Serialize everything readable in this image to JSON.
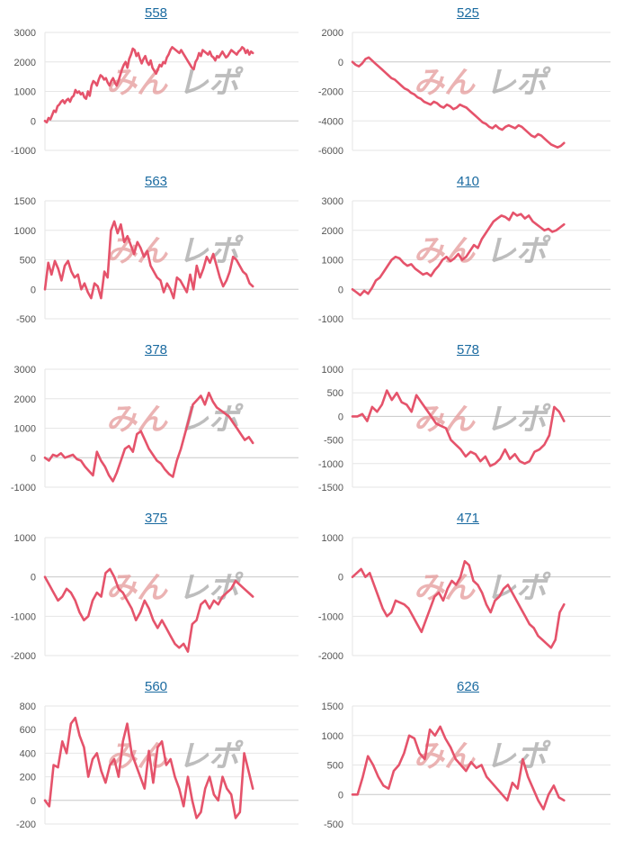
{
  "theme": {
    "line_color": "#e5536b",
    "grid_color": "#e6e6e6",
    "axis_color": "#c8c8c8",
    "title_color": "#1a6aa0",
    "tick_color": "#555555",
    "watermark_red": "#e59a9a",
    "watermark_gray": "#a8a8a8"
  },
  "watermark": {
    "text_red": "みん",
    "text_gray": "レポ"
  },
  "chart_data": [
    {
      "type": "line",
      "title": "558",
      "ticks": [
        3000,
        2000,
        1000,
        0,
        -1000
      ],
      "ylim": [
        -1000,
        3000
      ],
      "values": [
        0,
        -50,
        100,
        50,
        200,
        350,
        300,
        500,
        550,
        650,
        700,
        600,
        700,
        750,
        650,
        800,
        850,
        1050,
        950,
        1000,
        900,
        950,
        800,
        750,
        1000,
        850,
        1200,
        1350,
        1300,
        1200,
        1400,
        1550,
        1500,
        1400,
        1450,
        1300,
        1200,
        1350,
        1450,
        1300,
        1200,
        1350,
        1550,
        1750,
        1900,
        2000,
        1800,
        2100,
        2250,
        2450,
        2400,
        2200,
        2300,
        2100,
        1950,
        2100,
        2200,
        2000,
        1900,
        2050,
        1800,
        1700,
        1600,
        1750,
        1900,
        1850,
        2000,
        1950,
        2150,
        2250,
        2400,
        2500,
        2450,
        2400,
        2350,
        2300,
        2400,
        2300,
        2200,
        2100,
        2000,
        1900,
        1800,
        1750,
        2000,
        2100,
        2300,
        2200,
        2400,
        2350,
        2300,
        2250,
        2350,
        2200,
        2150,
        2050,
        2200,
        2150,
        2250,
        2350,
        2250,
        2150,
        2200,
        2300,
        2400,
        2350,
        2300,
        2250,
        2350,
        2400,
        2500,
        2450,
        2300,
        2400,
        2250,
        2350,
        2300
      ]
    },
    {
      "type": "line",
      "title": "525",
      "ticks": [
        2000,
        0,
        -2000,
        -4000,
        -6000
      ],
      "ylim": [
        -6000,
        2000
      ],
      "values": [
        0,
        -200,
        -300,
        -100,
        200,
        300,
        100,
        -100,
        -300,
        -500,
        -700,
        -900,
        -1100,
        -1200,
        -1400,
        -1600,
        -1800,
        -1900,
        -2100,
        -2200,
        -2400,
        -2500,
        -2700,
        -2800,
        -2900,
        -2700,
        -2800,
        -3000,
        -3100,
        -2900,
        -3000,
        -3200,
        -3100,
        -2900,
        -3000,
        -3100,
        -3300,
        -3500,
        -3700,
        -3900,
        -4100,
        -4200,
        -4400,
        -4500,
        -4300,
        -4500,
        -4600,
        -4400,
        -4300,
        -4400,
        -4500,
        -4300,
        -4400,
        -4600,
        -4800,
        -5000,
        -5100,
        -4900,
        -5000,
        -5200,
        -5400,
        -5600,
        -5700,
        -5800,
        -5700,
        -5500
      ]
    },
    {
      "type": "line",
      "title": "563",
      "ticks": [
        1500,
        1000,
        500,
        0,
        -500
      ],
      "ylim": [
        -500,
        1500
      ],
      "values": [
        0,
        450,
        250,
        480,
        350,
        150,
        400,
        480,
        300,
        200,
        250,
        0,
        100,
        -50,
        -150,
        100,
        50,
        -150,
        300,
        200,
        1000,
        1150,
        950,
        1100,
        800,
        900,
        750,
        600,
        800,
        700,
        550,
        650,
        400,
        300,
        200,
        150,
        -50,
        100,
        0,
        -150,
        200,
        150,
        50,
        -50,
        250,
        0,
        400,
        200,
        350,
        550,
        450,
        600,
        400,
        200,
        50,
        150,
        300,
        550,
        500,
        400,
        300,
        250,
        100,
        50
      ]
    },
    {
      "type": "line",
      "title": "410",
      "ticks": [
        3000,
        2000,
        1000,
        0,
        -1000
      ],
      "ylim": [
        -1000,
        3000
      ],
      "values": [
        0,
        -100,
        -200,
        -50,
        -150,
        50,
        300,
        400,
        600,
        800,
        1000,
        1100,
        1050,
        900,
        800,
        850,
        700,
        600,
        500,
        550,
        450,
        650,
        800,
        1000,
        1100,
        950,
        1050,
        1200,
        1000,
        1100,
        1300,
        1500,
        1400,
        1700,
        1900,
        2100,
        2300,
        2400,
        2500,
        2450,
        2350,
        2600,
        2500,
        2550,
        2400,
        2500,
        2300,
        2200,
        2100,
        2000,
        2050,
        1950,
        2000,
        2100,
        2200
      ]
    },
    {
      "type": "line",
      "title": "378",
      "ticks": [
        3000,
        2000,
        1000,
        0,
        -1000
      ],
      "ylim": [
        -1000,
        3000
      ],
      "values": [
        0,
        -100,
        100,
        50,
        150,
        0,
        50,
        100,
        -50,
        -100,
        -300,
        -450,
        -600,
        200,
        -100,
        -300,
        -600,
        -800,
        -500,
        -100,
        300,
        400,
        200,
        800,
        900,
        600,
        300,
        100,
        -100,
        -200,
        -400,
        -550,
        -650,
        -100,
        300,
        800,
        1300,
        1800,
        1950,
        2100,
        1800,
        2200,
        1900,
        1700,
        1600,
        1500,
        1400,
        1200,
        1000,
        800,
        600,
        700,
        500
      ]
    },
    {
      "type": "line",
      "title": "578",
      "ticks": [
        1000,
        500,
        0,
        -500,
        -1000,
        -1500
      ],
      "ylim": [
        -1500,
        1000
      ],
      "values": [
        0,
        0,
        50,
        -100,
        200,
        100,
        250,
        550,
        350,
        500,
        300,
        250,
        100,
        450,
        300,
        150,
        0,
        -150,
        -200,
        -250,
        -500,
        -600,
        -700,
        -850,
        -750,
        -800,
        -950,
        -850,
        -1050,
        -1000,
        -900,
        -700,
        -900,
        -800,
        -950,
        -1000,
        -950,
        -750,
        -700,
        -600,
        -400,
        200,
        100,
        -100
      ]
    },
    {
      "type": "line",
      "title": "375",
      "ticks": [
        1000,
        0,
        -1000,
        -2000
      ],
      "ylim": [
        -2000,
        1000
      ],
      "values": [
        0,
        -200,
        -400,
        -600,
        -500,
        -300,
        -400,
        -600,
        -900,
        -1100,
        -1000,
        -600,
        -400,
        -500,
        100,
        200,
        0,
        -300,
        -400,
        -600,
        -800,
        -1100,
        -900,
        -600,
        -800,
        -1100,
        -1300,
        -1100,
        -1300,
        -1500,
        -1700,
        -1800,
        -1700,
        -1900,
        -1200,
        -1100,
        -700,
        -600,
        -800,
        -600,
        -700,
        -500,
        -400,
        -300,
        -100,
        -200,
        -300,
        -400,
        -500
      ]
    },
    {
      "type": "line",
      "title": "471",
      "ticks": [
        1000,
        0,
        -1000,
        -2000
      ],
      "ylim": [
        -2000,
        1000
      ],
      "values": [
        0,
        100,
        200,
        0,
        100,
        -200,
        -500,
        -800,
        -1000,
        -900,
        -600,
        -650,
        -700,
        -800,
        -1000,
        -1200,
        -1400,
        -1100,
        -800,
        -500,
        -400,
        -600,
        -300,
        -100,
        -200,
        0,
        400,
        300,
        -100,
        -200,
        -400,
        -700,
        -900,
        -600,
        -500,
        -300,
        -200,
        -400,
        -600,
        -800,
        -1000,
        -1200,
        -1300,
        -1500,
        -1600,
        -1700,
        -1800,
        -1600,
        -900,
        -700
      ]
    },
    {
      "type": "line",
      "title": "560",
      "ticks": [
        800,
        600,
        400,
        200,
        0,
        -200
      ],
      "ylim": [
        -200,
        800
      ],
      "values": [
        0,
        -50,
        300,
        280,
        500,
        400,
        650,
        700,
        550,
        450,
        200,
        350,
        400,
        250,
        150,
        300,
        350,
        200,
        500,
        650,
        400,
        300,
        200,
        100,
        420,
        150,
        450,
        500,
        300,
        350,
        200,
        100,
        -50,
        200,
        0,
        -150,
        -100,
        100,
        200,
        50,
        0,
        200,
        100,
        50,
        -150,
        -100,
        400,
        250,
        100
      ]
    },
    {
      "type": "line",
      "title": "626",
      "ticks": [
        1500,
        1000,
        500,
        0,
        -500
      ],
      "ylim": [
        -500,
        1500
      ],
      "values": [
        0,
        0,
        300,
        650,
        500,
        300,
        150,
        100,
        400,
        500,
        700,
        1000,
        950,
        700,
        600,
        1100,
        1000,
        1150,
        950,
        800,
        600,
        500,
        400,
        550,
        450,
        500,
        300,
        200,
        100,
        0,
        -100,
        200,
        100,
        600,
        300,
        100,
        -100,
        -250,
        0,
        150,
        -50,
        -100
      ]
    }
  ]
}
